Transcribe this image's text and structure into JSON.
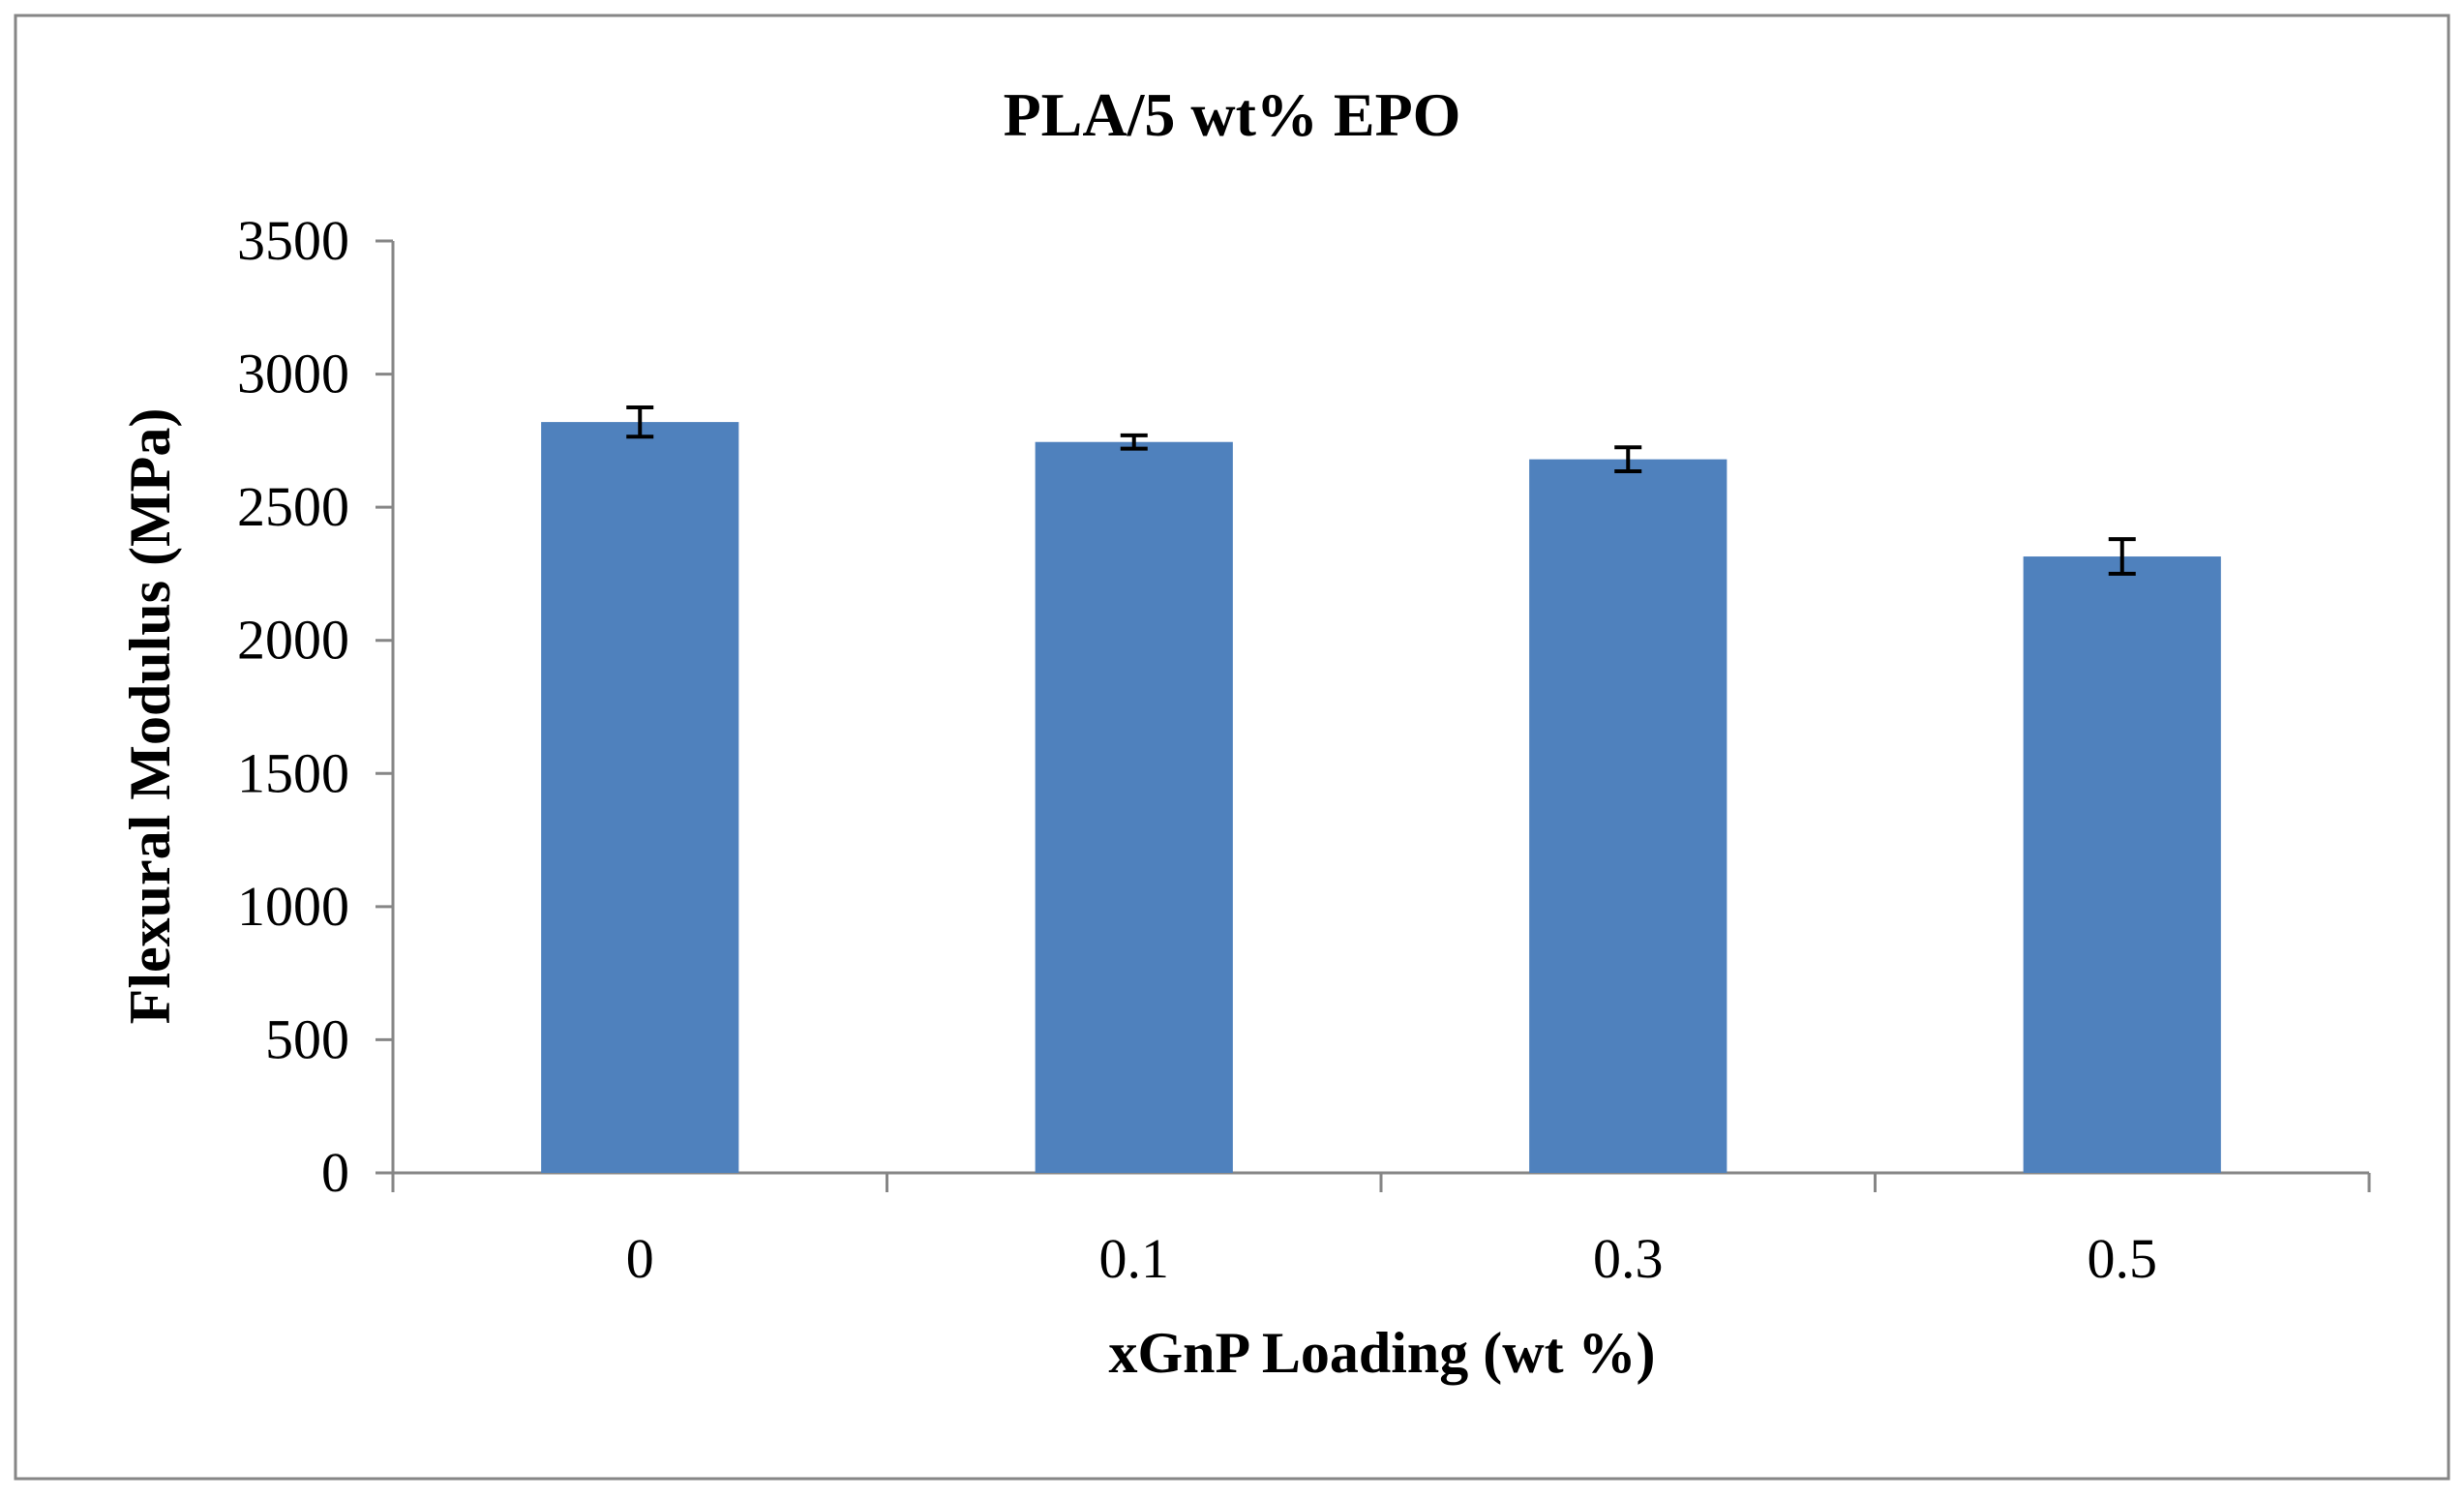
{
  "chart_data": {
    "type": "bar",
    "title": "PLA/5 wt% EPO",
    "xlabel": "xGnP Loading (wt %)",
    "ylabel": "Flexural Modulus (MPa)",
    "categories": [
      "0",
      "0.1",
      "0.3",
      "0.5"
    ],
    "values": [
      2820,
      2745,
      2680,
      2315
    ],
    "errors": [
      55,
      25,
      45,
      65
    ],
    "ylim": [
      0,
      3500
    ],
    "yticks": [
      0,
      500,
      1000,
      1500,
      2000,
      2500,
      3000,
      3500
    ],
    "ytick_labels": [
      "0",
      "500",
      "1000",
      "1500",
      "2000",
      "2500",
      "3000",
      "3500"
    ],
    "grid": false,
    "legend": "none",
    "colors": {
      "bar": "#4F81BD",
      "error_bar": "#000000",
      "axis": "#868686",
      "border": "#868686"
    }
  }
}
